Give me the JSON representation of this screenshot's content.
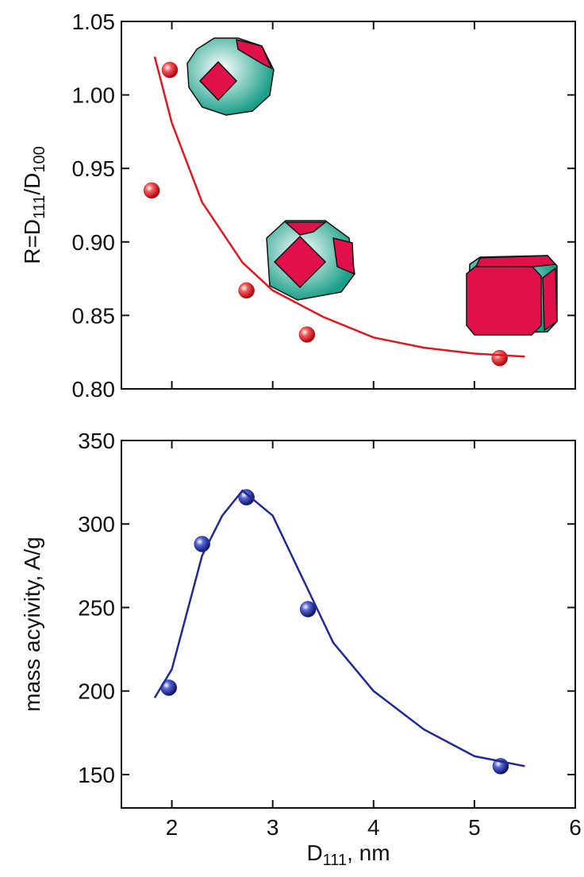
{
  "chart_data": [
    {
      "type": "scatter",
      "ylabel": [
        {
          "text": "R=D"
        },
        {
          "text": "111",
          "sub": true
        },
        {
          "text": "/D"
        },
        {
          "text": "100",
          "sub": true
        }
      ],
      "xlim": [
        1.5,
        6
      ],
      "xticks": [
        2,
        3,
        4,
        5,
        6
      ],
      "xtick_labels": false,
      "ylim": [
        0.8,
        1.05
      ],
      "yticks": [
        {
          "value": 0.8,
          "label": "0.80"
        },
        0.85,
        {
          "value": 0.9,
          "label": "0.90"
        },
        0.95,
        {
          "value": 1.0,
          "label": "1.00"
        },
        1.05
      ],
      "series": [
        {
          "color": "#e3161e",
          "style": "markers",
          "x": [
            1.98,
            1.8,
            2.74,
            3.34,
            5.25
          ],
          "values": [
            1.017,
            0.935,
            0.867,
            0.837,
            0.821
          ]
        },
        {
          "color": "#e3161e",
          "style": "line",
          "x": [
            1.83,
            2.0,
            2.3,
            2.7,
            3.0,
            3.5,
            4.0,
            4.5,
            5.0,
            5.5
          ],
          "values": [
            1.026,
            0.981,
            0.927,
            0.886,
            0.867,
            0.849,
            0.835,
            0.828,
            0.824,
            0.822
          ]
        }
      ]
    },
    {
      "type": "scatter",
      "ylabel": [
        {
          "text": "mass acyivity, A/g"
        }
      ],
      "xlabel": [
        {
          "text": "D"
        },
        {
          "text": "111",
          "sub": true
        },
        {
          "text": ", nm"
        }
      ],
      "xlim": [
        1.5,
        6
      ],
      "xticks": [
        2,
        3,
        4,
        5,
        6
      ],
      "xtick_labels": true,
      "ylim": [
        130,
        350
      ],
      "yticks": [
        150,
        200,
        250,
        300,
        350
      ],
      "series": [
        {
          "color": "#1f2a96",
          "style": "markers",
          "x": [
            1.97,
            2.3,
            2.74,
            3.35,
            5.26
          ],
          "values": [
            202,
            288,
            316,
            249,
            155
          ]
        },
        {
          "color": "#1f2a96",
          "style": "line",
          "x": [
            1.83,
            2.0,
            2.3,
            2.5,
            2.7,
            3.0,
            3.3,
            3.6,
            4.0,
            4.5,
            5.0,
            5.5
          ],
          "values": [
            196,
            213,
            281,
            305,
            320,
            305,
            267,
            229,
            200,
            177,
            161,
            155
          ]
        }
      ]
    }
  ]
}
